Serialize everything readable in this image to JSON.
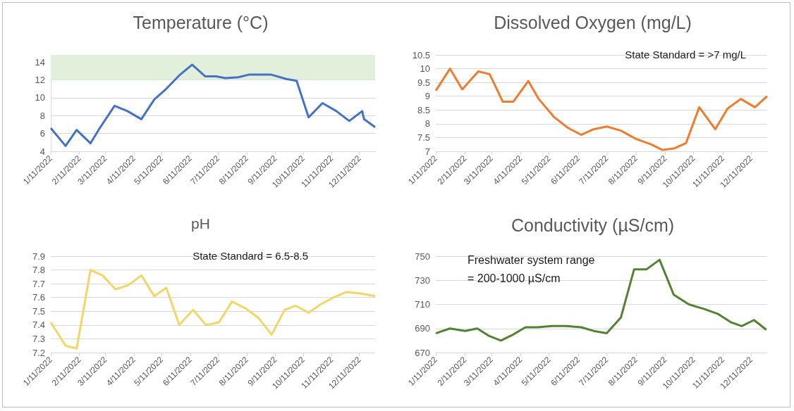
{
  "chart_data": [
    {
      "type": "line",
      "title": "Temperature (°C)",
      "grid": "y",
      "marker": "none",
      "x": [
        "2022-01-11",
        "2022-01-27",
        "2022-02-08",
        "2022-02-23",
        "2022-03-05",
        "2022-03-21",
        "2022-04-04",
        "2022-04-19",
        "2022-05-03",
        "2022-05-15",
        "2022-05-30",
        "2022-06-13",
        "2022-06-27",
        "2022-07-09",
        "2022-07-19",
        "2022-08-02",
        "2022-08-14",
        "2022-09-06",
        "2022-09-23",
        "2022-10-04",
        "2022-10-17",
        "2022-11-01",
        "2022-11-16",
        "2022-11-30",
        "2022-12-14",
        "2022-12-16",
        "2022-12-28"
      ],
      "series": [
        {
          "color": "#4472c4",
          "values": [
            6.6,
            4.6,
            6.4,
            4.9,
            6.6,
            9.1,
            8.5,
            7.6,
            9.8,
            10.9,
            12.5,
            13.7,
            12.4,
            12.4,
            12.2,
            12.3,
            12.6,
            12.6,
            12.1,
            11.9,
            7.8,
            9.4,
            8.5,
            7.4,
            8.5,
            7.6,
            6.7
          ]
        }
      ],
      "xlim": [
        "2022-01-11",
        "2022-12-28"
      ],
      "xticks": [
        {
          "value": "2022-01-11",
          "label": "1/11/2022"
        },
        {
          "value": "2022-02-11",
          "label": "2/11/2022"
        },
        {
          "value": "2022-03-11",
          "label": "3/11/2022"
        },
        {
          "value": "2022-04-11",
          "label": "4/11/2022"
        },
        {
          "value": "2022-05-11",
          "label": "5/11/2022"
        },
        {
          "value": "2022-06-11",
          "label": "6/11/2022"
        },
        {
          "value": "2022-07-11",
          "label": "7/11/2022"
        },
        {
          "value": "2022-08-11",
          "label": "8/11/2022"
        },
        {
          "value": "2022-09-11",
          "label": "9/11/2022"
        },
        {
          "value": "2022-10-11",
          "label": "10/11/2022"
        },
        {
          "value": "2022-11-11",
          "label": "11/11/2022"
        },
        {
          "value": "2022-12-11",
          "label": "12/11/2022"
        }
      ],
      "ylim": [
        4,
        14.8
      ],
      "yticks": [
        4,
        6,
        8,
        10,
        12,
        14
      ],
      "bands": [
        {
          "axis": "y",
          "from": 12,
          "to": 14.8,
          "color": "#e2efda"
        }
      ]
    },
    {
      "type": "line",
      "title": "Dissolved Oxygen (mg/L)",
      "grid": "y",
      "marker": "none",
      "annotations": [
        "State Standard = >7 mg/L"
      ],
      "x": [
        "2022-01-11",
        "2022-01-26",
        "2022-02-08",
        "2022-02-25",
        "2022-03-09",
        "2022-03-23",
        "2022-04-03",
        "2022-04-19",
        "2022-04-30",
        "2022-05-16",
        "2022-05-31",
        "2022-06-14",
        "2022-06-27",
        "2022-07-11",
        "2022-07-26",
        "2022-08-11",
        "2022-08-27",
        "2022-09-08",
        "2022-09-20",
        "2022-10-03",
        "2022-10-17",
        "2022-11-03",
        "2022-11-16",
        "2022-11-30",
        "2022-12-15",
        "2022-12-28"
      ],
      "series": [
        {
          "color": "#ed7d31",
          "values": [
            9.2,
            10.0,
            9.25,
            9.9,
            9.8,
            8.8,
            8.8,
            9.55,
            8.9,
            8.25,
            7.85,
            7.6,
            7.8,
            7.9,
            7.75,
            7.45,
            7.25,
            7.05,
            7.1,
            7.3,
            8.6,
            7.8,
            8.55,
            8.9,
            8.6,
            9.0
          ]
        }
      ],
      "xlim": [
        "2022-01-11",
        "2022-12-28"
      ],
      "xticks": [
        {
          "value": "2022-01-11",
          "label": "1/11/2022"
        },
        {
          "value": "2022-02-11",
          "label": "2/11/2022"
        },
        {
          "value": "2022-03-11",
          "label": "3/11/2022"
        },
        {
          "value": "2022-04-11",
          "label": "4/11/2022"
        },
        {
          "value": "2022-05-11",
          "label": "5/11/2022"
        },
        {
          "value": "2022-06-11",
          "label": "6/11/2022"
        },
        {
          "value": "2022-07-11",
          "label": "7/11/2022"
        },
        {
          "value": "2022-08-11",
          "label": "8/11/2022"
        },
        {
          "value": "2022-09-11",
          "label": "9/11/2022"
        },
        {
          "value": "2022-10-11",
          "label": "10/11/2022"
        },
        {
          "value": "2022-11-11",
          "label": "11/11/2022"
        },
        {
          "value": "2022-12-11",
          "label": "12/11/2022"
        }
      ],
      "ylim": [
        7,
        10.5
      ],
      "yticks": [
        7,
        7.5,
        8,
        8.5,
        9,
        9.5,
        10,
        10.5
      ]
    },
    {
      "type": "line",
      "title": "pH",
      "grid": "y",
      "marker": "none",
      "annotations": [
        "State Standard = 6.5-8.5"
      ],
      "x": [
        "2022-01-11",
        "2022-01-27",
        "2022-02-08",
        "2022-02-23",
        "2022-03-08",
        "2022-03-22",
        "2022-04-05",
        "2022-04-19",
        "2022-05-03",
        "2022-05-16",
        "2022-05-30",
        "2022-06-14",
        "2022-06-28",
        "2022-07-12",
        "2022-07-26",
        "2022-08-10",
        "2022-08-24",
        "2022-09-07",
        "2022-09-21",
        "2022-10-03",
        "2022-10-17",
        "2022-10-30",
        "2022-11-13",
        "2022-11-27",
        "2022-12-11",
        "2022-12-28"
      ],
      "series": [
        {
          "color": "#f4d56a",
          "values": [
            7.42,
            7.25,
            7.23,
            7.8,
            7.76,
            7.66,
            7.69,
            7.76,
            7.61,
            7.67,
            7.4,
            7.51,
            7.4,
            7.42,
            7.57,
            7.52,
            7.45,
            7.33,
            7.51,
            7.54,
            7.49,
            7.55,
            7.6,
            7.64,
            7.63,
            7.61
          ]
        }
      ],
      "xlim": [
        "2022-01-11",
        "2022-12-28"
      ],
      "xticks": [
        {
          "value": "2022-01-11",
          "label": "1/11/2022"
        },
        {
          "value": "2022-02-11",
          "label": "2/11/2022"
        },
        {
          "value": "2022-03-11",
          "label": "3/11/2022"
        },
        {
          "value": "2022-04-11",
          "label": "4/11/2022"
        },
        {
          "value": "2022-05-11",
          "label": "5/11/2022"
        },
        {
          "value": "2022-06-11",
          "label": "6/11/2022"
        },
        {
          "value": "2022-07-11",
          "label": "7/11/2022"
        },
        {
          "value": "2022-08-11",
          "label": "8/11/2022"
        },
        {
          "value": "2022-09-11",
          "label": "9/11/2022"
        },
        {
          "value": "2022-10-11",
          "label": "10/11/2022"
        },
        {
          "value": "2022-11-11",
          "label": "11/11/2022"
        },
        {
          "value": "2022-12-11",
          "label": "12/11/2022"
        }
      ],
      "ylim": [
        7.2,
        7.9
      ],
      "yticks": [
        7.2,
        7.3,
        7.4,
        7.5,
        7.6,
        7.7,
        7.8,
        7.9
      ]
    },
    {
      "type": "line",
      "title": "Conductivity (µS/cm)",
      "grid": "y",
      "marker": "none",
      "annotations": [
        "Freshwater system range = 200-1000 µS/cm"
      ],
      "x": [
        "2022-01-11",
        "2022-01-26",
        "2022-02-11",
        "2022-02-24",
        "2022-03-08",
        "2022-03-21",
        "2022-04-03",
        "2022-04-16",
        "2022-04-29",
        "2022-05-14",
        "2022-05-29",
        "2022-06-14",
        "2022-06-27",
        "2022-07-11",
        "2022-07-26",
        "2022-08-09",
        "2022-08-22",
        "2022-09-05",
        "2022-09-20",
        "2022-10-06",
        "2022-10-23",
        "2022-11-06",
        "2022-11-20",
        "2022-12-01",
        "2022-12-14",
        "2022-12-27"
      ],
      "series": [
        {
          "color": "#548235",
          "values": [
            686,
            690,
            688,
            690,
            684,
            680,
            685,
            691,
            691,
            692,
            692,
            691,
            688,
            686,
            699,
            739,
            739,
            747,
            718,
            710,
            706,
            702,
            695,
            692,
            697,
            689
          ]
        }
      ],
      "xlim": [
        "2022-01-11",
        "2022-12-28"
      ],
      "xticks": [
        {
          "value": "2022-01-11",
          "label": "1/11/2022"
        },
        {
          "value": "2022-02-11",
          "label": "2/11/2022"
        },
        {
          "value": "2022-03-11",
          "label": "3/11/2022"
        },
        {
          "value": "2022-04-11",
          "label": "4/11/2022"
        },
        {
          "value": "2022-05-11",
          "label": "5/11/2022"
        },
        {
          "value": "2022-06-11",
          "label": "6/11/2022"
        },
        {
          "value": "2022-07-11",
          "label": "7/11/2022"
        },
        {
          "value": "2022-08-11",
          "label": "8/11/2022"
        },
        {
          "value": "2022-09-11",
          "label": "9/11/2022"
        },
        {
          "value": "2022-10-11",
          "label": "10/11/2022"
        },
        {
          "value": "2022-11-11",
          "label": "11/11/2022"
        },
        {
          "value": "2022-12-11",
          "label": "12/11/2022"
        }
      ],
      "ylim": [
        670,
        750
      ],
      "yticks": [
        670,
        690,
        710,
        730,
        750
      ]
    }
  ]
}
